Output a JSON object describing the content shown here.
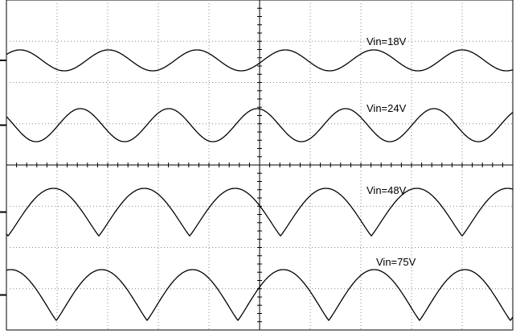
{
  "traces": [
    {
      "label": "Vin=18V"
    },
    {
      "label": "Vin=24V"
    },
    {
      "label": "Vin=48V"
    },
    {
      "label": "Vin=75V"
    }
  ]
}
